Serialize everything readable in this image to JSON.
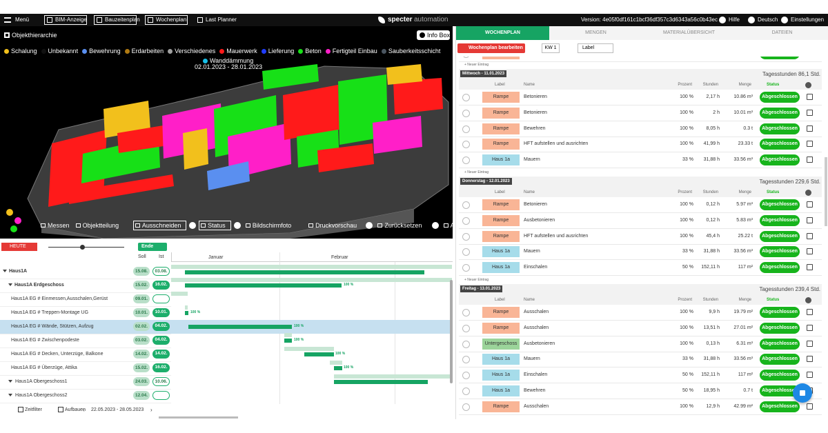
{
  "topbar": {
    "menu": "Menü",
    "tabs": [
      "BIM-Anzeige",
      "Bauzeitenplan",
      "Wochenplan",
      "Last Planner"
    ],
    "logo": "specter",
    "logo_suffix": "automation",
    "version": "Version: 4e05f0df161c1bcf36df357c3d6343a56c0b43ec",
    "help": "Hilfe",
    "language": "Deutsch",
    "settings": "Einstellungen"
  },
  "viewer": {
    "hierarchy": "Objekthierarchie",
    "info_box": "Info Box",
    "legend": [
      {
        "name": "Schalung",
        "color": "#f2c01c"
      },
      {
        "name": "Unbekannt",
        "color": "#111111"
      },
      {
        "name": "Bewehrung",
        "color": "#5a8ff0"
      },
      {
        "name": "Erdarbeiten",
        "color": "#b07a12"
      },
      {
        "name": "Verschiedenes",
        "color": "#a0a0a0"
      },
      {
        "name": "Mauerwerk",
        "color": "#ff1a1a"
      },
      {
        "name": "Lieferung",
        "color": "#1f3cff"
      },
      {
        "name": "Beton",
        "color": "#17e017"
      },
      {
        "name": "Fertigteil Einbau",
        "color": "#ff1fc8"
      },
      {
        "name": "Sauberkeitsschicht",
        "color": "#4a5560"
      }
    ],
    "filter_name": "Wanddämmung",
    "filter_color": "#18c0e8",
    "date_range": "02.01.2023 - 28.01.2023",
    "tools": [
      "Messen",
      "Objektteilung",
      "Ausschneiden",
      "Status",
      "Bildschirmfoto",
      "Druckvorschau",
      "Zurücksetzen",
      "Achsen"
    ]
  },
  "gantt": {
    "today": "HEUTE",
    "end": "Ende",
    "soll": "Soll",
    "ist": "Ist",
    "months": [
      "Januar",
      "Februar"
    ],
    "rows": [
      {
        "name": "Haus1A",
        "soll": "15.08.",
        "ist": "03.08."
      },
      {
        "name": "Haus1A Erdgeschoss",
        "soll": "15.02.",
        "ist": "16.02.",
        "percent": "100 %"
      },
      {
        "name": "Haus1A EG # Einmessen,Ausschalen,Gerüst",
        "soll": "09.01.",
        "ist": null
      },
      {
        "name": "Haus1A EG # Treppen-Montage UG",
        "soll": "10.01.",
        "ist": "10.01.",
        "percent": "100 %"
      },
      {
        "name": "Haus1A EG # Wände, Stützen, Aufzug",
        "soll": "02.02.",
        "ist": "04.02.",
        "percent": "100 %"
      },
      {
        "name": "Haus1A EG # Zwischenpodeste",
        "soll": "03.02.",
        "ist": "04.02.",
        "percent": "100 %"
      },
      {
        "name": "Haus1A EG # Decken, Unterzüge, Balkone",
        "soll": "14.02.",
        "ist": "14.02.",
        "percent": "100 %"
      },
      {
        "name": "Haus1A EG # Überzüge, Attika",
        "soll": "15.02.",
        "ist": "16.02.",
        "percent": "100 %"
      },
      {
        "name": "Haus1A Obergeschoss1",
        "soll": "24.03.",
        "ist": "10.06."
      },
      {
        "name": "Haus1A Obergeschoss2",
        "soll": "12.04.",
        "ist": null
      }
    ],
    "filter": "Zeitfilter",
    "build": "Aufbauen",
    "week_range": "22.05.2023 - 28.05.2023"
  },
  "weekplan": {
    "tabs": [
      "WOCHENPLAN",
      "MENGEN",
      "MATERIALÜBERSICHT",
      "DATEIEN"
    ],
    "edit": "Wochenplan bearbeiten",
    "week": "KW 1",
    "label_filter": "Label",
    "new_entry": "+ Neuer Eintrag",
    "columns": [
      "Label",
      "Name",
      "Prozent",
      "Stunden",
      "Menge",
      "Status"
    ],
    "status": "Abgeschlossen",
    "partial_row": {
      "label": "Rampe",
      "name": "Einschalen"
    },
    "days": [
      {
        "title": "Mittwoch - 11.01.2023",
        "hours": "Tagesstunden 86,1 Std.",
        "rows": [
          {
            "label": "Rampe",
            "name": "Betonieren",
            "percent": "100 %",
            "hours": "2,17 h",
            "amount": "10.86 m³"
          },
          {
            "label": "Rampe",
            "name": "Betonieren",
            "percent": "100 %",
            "hours": "2 h",
            "amount": "10.01 m³"
          },
          {
            "label": "Rampe",
            "name": "Bewehren",
            "percent": "100 %",
            "hours": "8,05 h",
            "amount": "0.3 t"
          },
          {
            "label": "Rampe",
            "name": "HFT aufstellen und ausrichten",
            "percent": "100 %",
            "hours": "41,99 h",
            "amount": "23.33 t"
          },
          {
            "label": "Haus 1a",
            "name": "Mauern",
            "percent": "33 %",
            "hours": "31,88 h",
            "amount": "33.56 m³"
          }
        ]
      },
      {
        "title": "Donnerstag - 12.01.2023",
        "hours": "Tagesstunden 229,6 Std.",
        "rows": [
          {
            "label": "Rampe",
            "name": "Betonieren",
            "percent": "100 %",
            "hours": "0,12 h",
            "amount": "5.97 m³"
          },
          {
            "label": "Rampe",
            "name": "Ausbetonieren",
            "percent": "100 %",
            "hours": "0,12 h",
            "amount": "5.83 m³"
          },
          {
            "label": "Rampe",
            "name": "HFT aufstellen und ausrichten",
            "percent": "100 %",
            "hours": "45,4 h",
            "amount": "25.22 t"
          },
          {
            "label": "Haus 1a",
            "name": "Mauern",
            "percent": "33 %",
            "hours": "31,88 h",
            "amount": "33.56 m³"
          },
          {
            "label": "Haus 1a",
            "name": "Einschalen",
            "percent": "50 %",
            "hours": "152,11 h",
            "amount": "117 m²"
          }
        ]
      },
      {
        "title": "Freitag - 13.01.2023",
        "hours": "Tagesstunden 239,4 Std.",
        "rows": [
          {
            "label": "Rampe",
            "name": "Ausschalen",
            "percent": "100 %",
            "hours": "9,9 h",
            "amount": "19.79 m²"
          },
          {
            "label": "Rampe",
            "name": "Ausschalen",
            "percent": "100 %",
            "hours": "13,51 h",
            "amount": "27.01 m²"
          },
          {
            "label": "Untergeschoss",
            "name": "Ausbetonieren",
            "percent": "100 %",
            "hours": "0,13 h",
            "amount": "6.31 m³"
          },
          {
            "label": "Haus 1a",
            "name": "Mauern",
            "percent": "33 %",
            "hours": "31,88 h",
            "amount": "33.56 m³"
          },
          {
            "label": "Haus 1a",
            "name": "Einschalen",
            "percent": "50 %",
            "hours": "152,11 h",
            "amount": "117 m²"
          },
          {
            "label": "Haus 1a",
            "name": "Bewehren",
            "percent": "50 %",
            "hours": "18,95 h",
            "amount": "0.7 t"
          },
          {
            "label": "Rampe",
            "name": "Ausschalen",
            "percent": "100 %",
            "hours": "12,9 h",
            "amount": "42.99 m²"
          }
        ]
      }
    ]
  }
}
